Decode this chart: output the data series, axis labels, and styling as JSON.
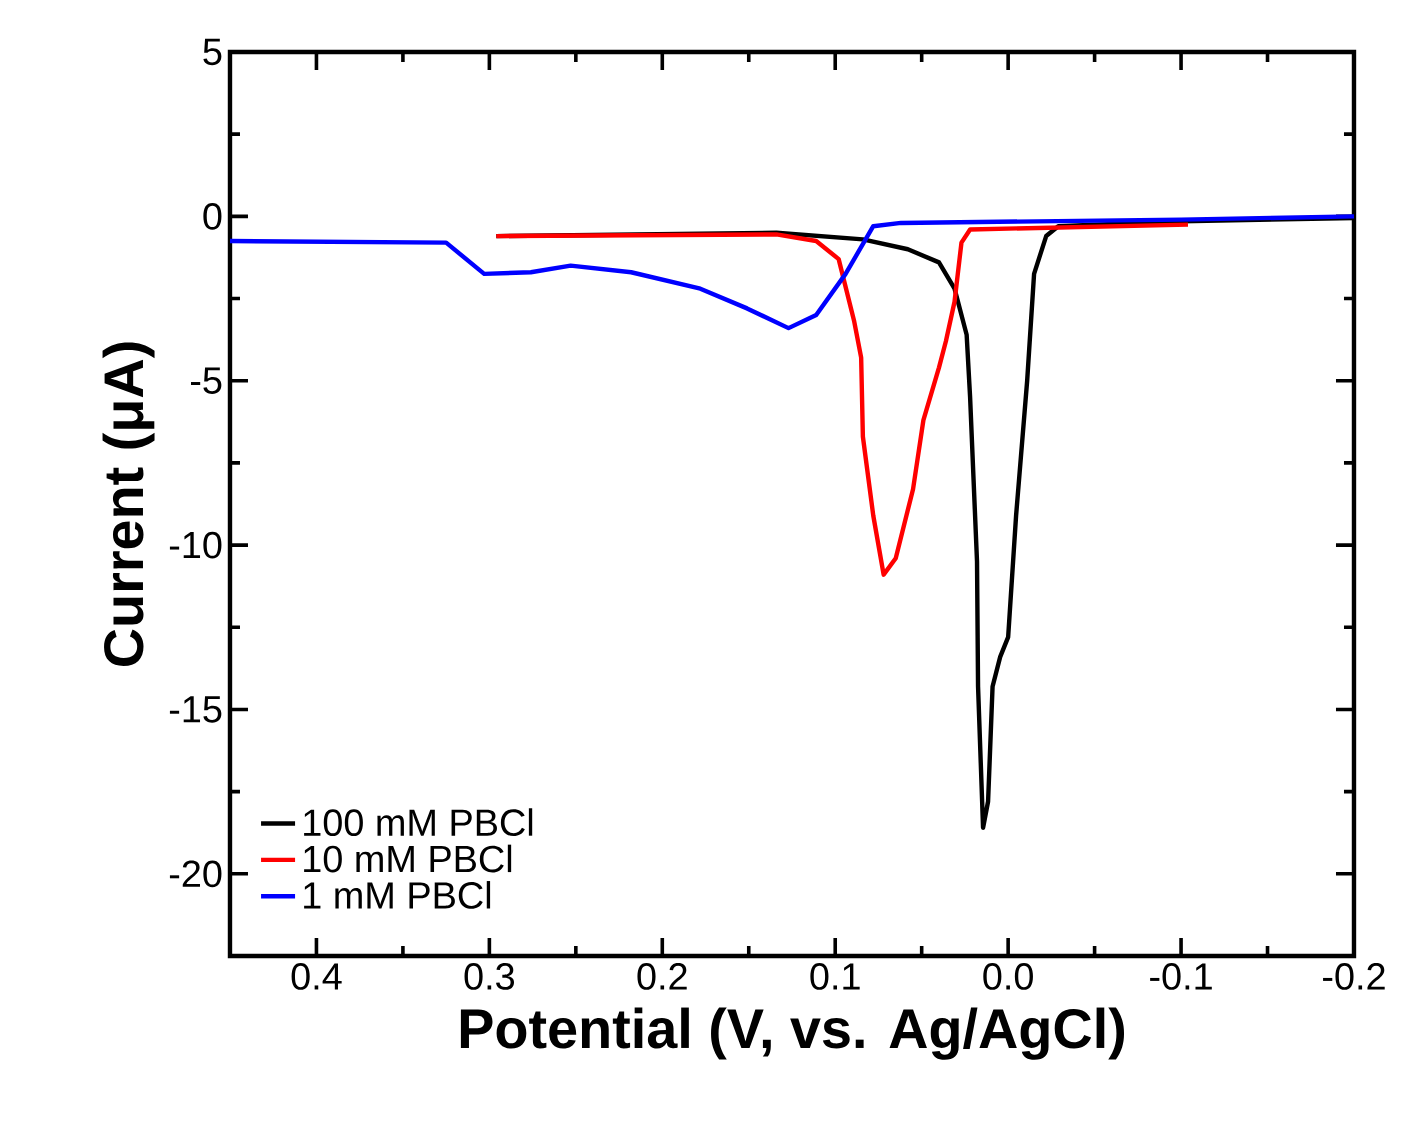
{
  "chart_data": {
    "type": "line",
    "xlabel": "Potential (V, vs. Ag/AgCl)",
    "ylabel": "Current (μA)",
    "xlim": [
      0.45,
      -0.2
    ],
    "xticks": [
      0.4,
      0.3,
      0.2,
      0.1,
      {
        "value": 0,
        "label": "0.0"
      },
      -0.1,
      -0.2
    ],
    "ylim": [
      -22.5,
      5
    ],
    "yticks": [
      -20,
      -15,
      -10,
      -5,
      0,
      5
    ],
    "grid": false,
    "legend": "bottom left",
    "marker": "none",
    "line_style": "solid",
    "series": [
      {
        "name": "100 mM PBCl",
        "color": "#000000",
        "x": [
          0.296,
          0.134,
          0.084,
          0.058,
          0.04,
          0.031,
          0.024,
          0.022,
          0.018,
          0.0174,
          0.0145,
          0.0116,
          0.009,
          0.0046,
          0.0,
          -0.0046,
          -0.011,
          -0.015,
          -0.022,
          -0.029,
          -0.1,
          -0.2
        ],
        "values": [
          -0.6,
          -0.5,
          -0.7,
          -1.0,
          -1.4,
          -2.2,
          -3.6,
          -5.5,
          -10.5,
          -14.3,
          -18.6,
          -17.8,
          -14.3,
          -13.4,
          -12.8,
          -9.1,
          -5.0,
          -1.75,
          -0.6,
          -0.3,
          -0.15,
          -0.05
        ]
      },
      {
        "name": "10 mM PBCl",
        "color": "#ff0000",
        "x": [
          0.296,
          0.134,
          0.111,
          0.098,
          0.089,
          0.085,
          0.084,
          0.078,
          0.072,
          0.065,
          0.055,
          0.049,
          0.04,
          0.036,
          0.031,
          0.027,
          0.022,
          -0.104
        ],
        "values": [
          -0.6,
          -0.55,
          -0.75,
          -1.3,
          -3.2,
          -4.3,
          -6.7,
          -9.1,
          -10.9,
          -10.4,
          -8.3,
          -6.2,
          -4.6,
          -3.8,
          -2.6,
          -0.8,
          -0.4,
          -0.25
        ]
      },
      {
        "name": "1 mM PBCl",
        "color": "#0000ff",
        "x": [
          0.45,
          0.325,
          0.303,
          0.276,
          0.253,
          0.218,
          0.178,
          0.151,
          0.127,
          0.111,
          0.094,
          0.078,
          0.062,
          -0.1,
          -0.2
        ],
        "values": [
          -0.75,
          -0.8,
          -1.75,
          -1.7,
          -1.5,
          -1.7,
          -2.2,
          -2.8,
          -3.4,
          -3.0,
          -1.75,
          -0.3,
          -0.2,
          -0.1,
          0.0
        ]
      }
    ]
  }
}
